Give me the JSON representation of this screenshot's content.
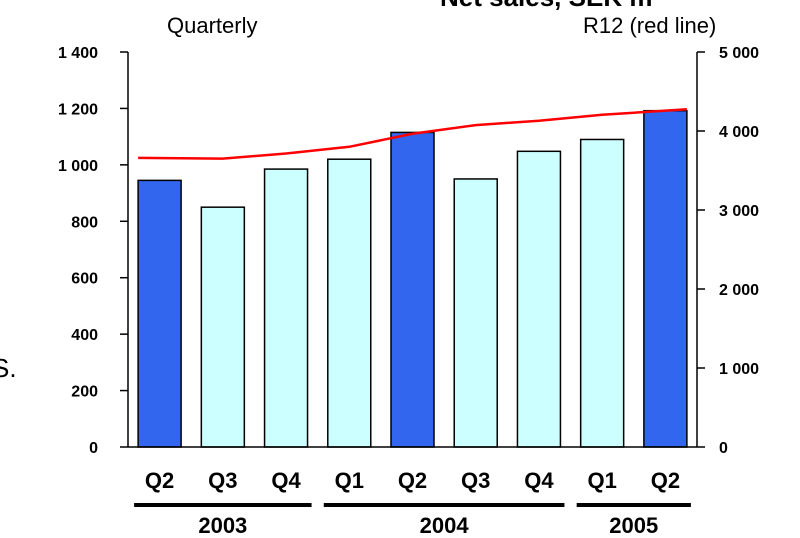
{
  "title_fragment": "Net sales, SEK m",
  "side_fragment": "S.",
  "chart_data": {
    "type": "bar",
    "left_axis_label": "Quarterly",
    "right_axis_label": "R12 (red line)",
    "categories": [
      "Q2",
      "Q3",
      "Q4",
      "Q1",
      "Q2",
      "Q3",
      "Q4",
      "Q1",
      "Q2"
    ],
    "years": [
      {
        "label": "2003",
        "span": [
          0,
          2
        ]
      },
      {
        "label": "2004",
        "span": [
          3,
          6
        ]
      },
      {
        "label": "2005",
        "span": [
          7,
          8
        ]
      }
    ],
    "series": [
      {
        "values": [
          945,
          850,
          985,
          1020,
          1115,
          950,
          1048,
          1090,
          1192
        ],
        "highlight": [
          true,
          false,
          false,
          false,
          true,
          false,
          false,
          false,
          true
        ]
      },
      {
        "name": "R12",
        "values": [
          3660,
          3650,
          3715,
          3800,
          3965,
          4075,
          4130,
          4205,
          4275
        ],
        "axis": "right",
        "color": "#ff0000"
      }
    ],
    "ylim_left": [
      0,
      1400
    ],
    "yticks_left": [
      0,
      200,
      400,
      600,
      800,
      1000,
      1200,
      1400
    ],
    "yticks_left_labels": [
      "0",
      "200",
      "400",
      "600",
      "800",
      "1 000",
      "1 200",
      "1 400"
    ],
    "ylim_right": [
      0,
      5000
    ],
    "yticks_right": [
      0,
      1000,
      2000,
      3000,
      4000,
      5000
    ],
    "yticks_right_labels": [
      "0",
      "1 000",
      "2 000",
      "3 000",
      "4 000",
      "5 000"
    ],
    "colors": {
      "highlight_bar": "#3366ee",
      "normal_bar": "#ccffff",
      "bar_stroke": "#000000",
      "r12_line": "#ff0000"
    },
    "grid": false
  }
}
